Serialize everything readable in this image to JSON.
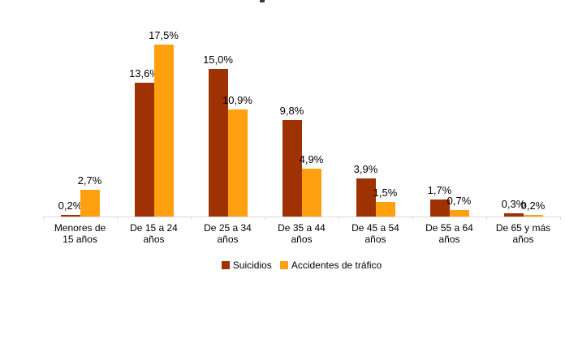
{
  "chart_data": {
    "type": "bar",
    "categories": [
      "Menores de 15 años",
      "De 15 a 24 años",
      "De 25 a 34 años",
      "De 35 a 44 años",
      "De 45 a 54 años",
      "De 55 a 64 años",
      "De 65 y más años"
    ],
    "categories_lines": [
      [
        "Menores de",
        "15 años"
      ],
      [
        "De 15 a 24",
        "años"
      ],
      [
        "De 25 a 34",
        "años"
      ],
      [
        "De 35 a 44",
        "años"
      ],
      [
        "De 45 a 54",
        "años"
      ],
      [
        "De 55 a 64",
        "años"
      ],
      [
        "De 65 y más",
        "años"
      ]
    ],
    "series": [
      {
        "name": "Suicidios",
        "color": "#9e3202",
        "values": [
          0.2,
          13.6,
          15.0,
          9.8,
          3.9,
          1.7,
          0.3
        ],
        "labels": [
          "0,2%",
          "13,6%",
          "15,0%",
          "9,8%",
          "3,9%",
          "1,7%",
          "0,3%"
        ]
      },
      {
        "name": "Accidentes de tráfico",
        "color": "#ffa011",
        "values": [
          2.7,
          17.5,
          10.9,
          4.9,
          1.5,
          0.7,
          0.2
        ],
        "labels": [
          "2,7%",
          "17,5%",
          "10,9%",
          "4,9%",
          "1,5%",
          "0,7%",
          "0,2%"
        ]
      }
    ],
    "ylim": [
      0,
      17.5
    ],
    "grid": false,
    "legend_position": "bottom",
    "axis_color": "#d9d9d9",
    "label_color": "#000000",
    "xlabel": "",
    "ylabel": "",
    "title": ""
  }
}
